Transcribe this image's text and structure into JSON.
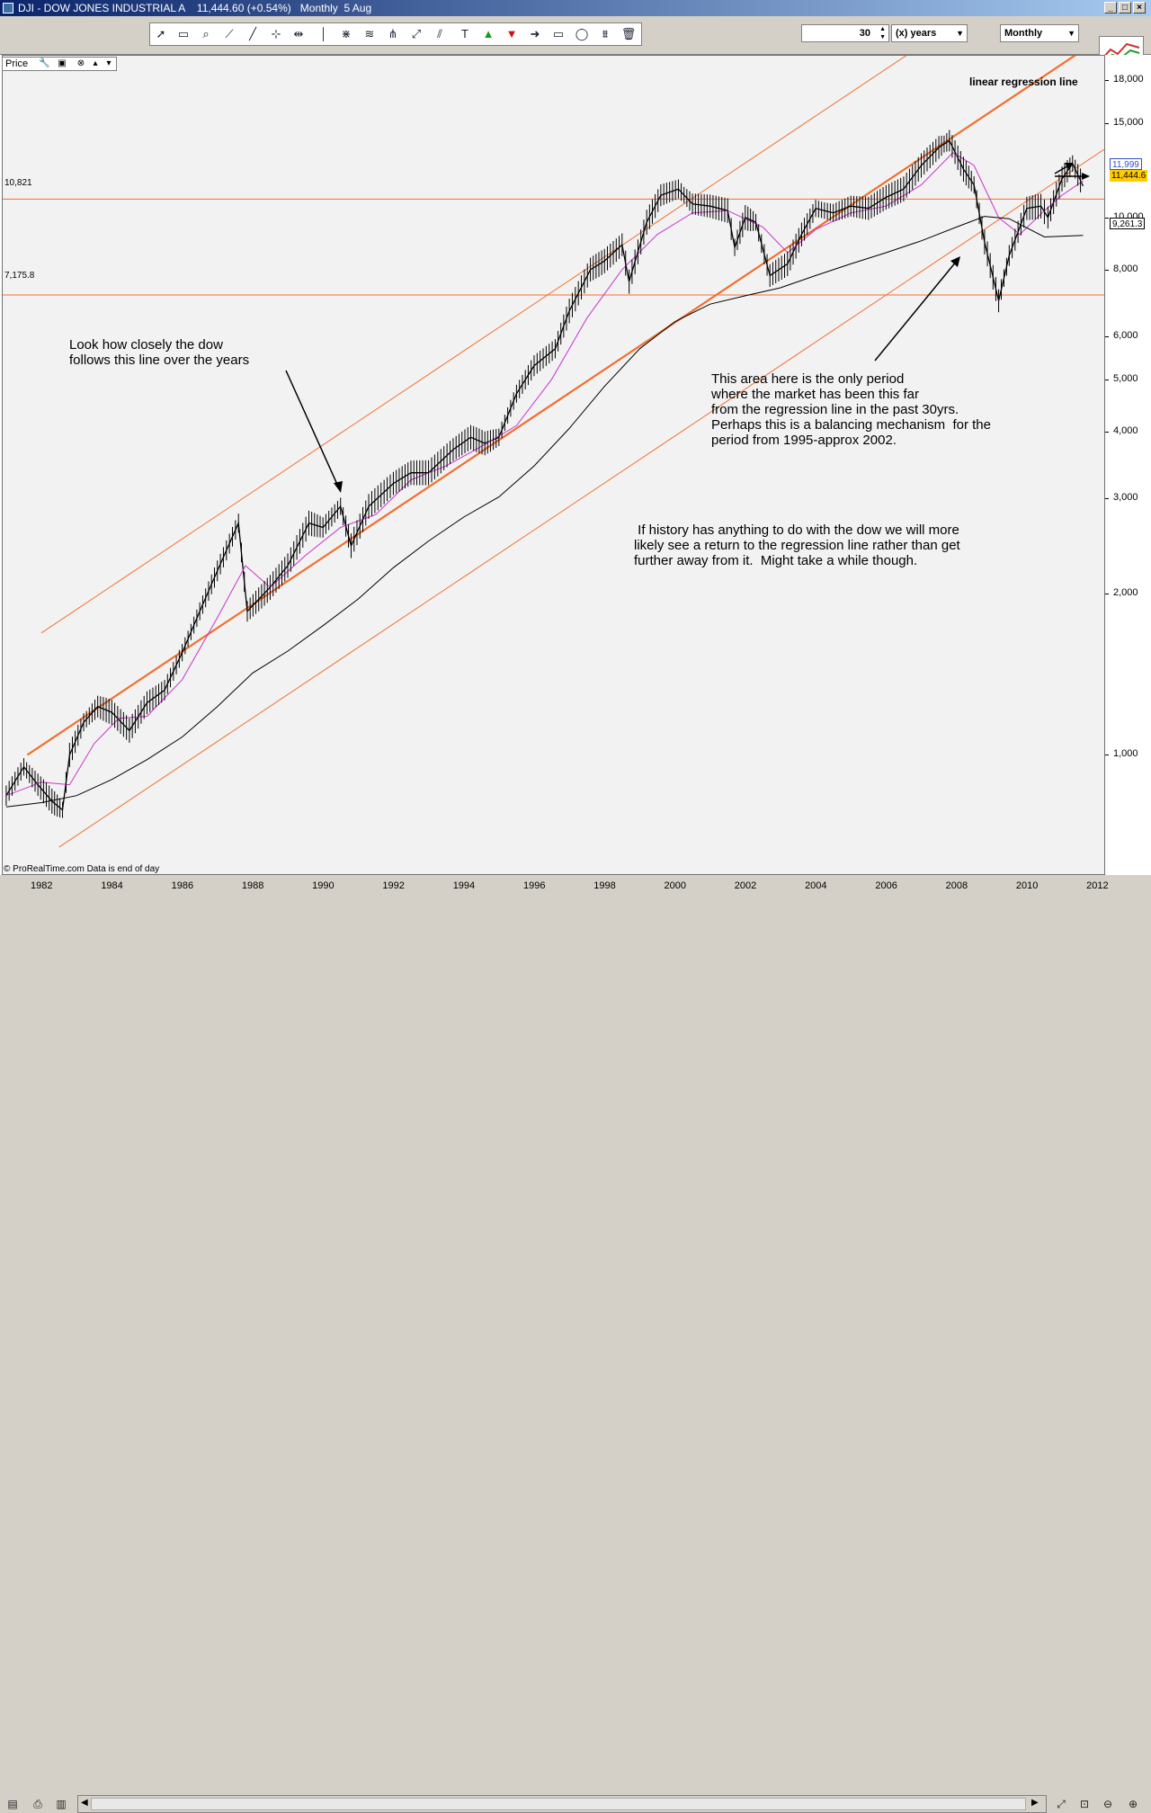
{
  "window": {
    "title": "DJI - DOW JONES INDUSTRIAL A    11,444.60 (+0.54%)   Monthly  5 Aug",
    "min_label": "_",
    "max_label": "□",
    "close_label": "×"
  },
  "toolbar": {
    "period_value": "30",
    "period_unit": "(x) years",
    "timeframe": "Monthly",
    "tools": [
      "pointer-icon",
      "ruler-icon",
      "zoom-icon",
      "trendline-icon",
      "line-icon",
      "horizontal-line-icon",
      "horizontal-segment-icon",
      "vertical-line-icon",
      "fibonacci-icon",
      "channel-icon",
      "pitchfork-icon",
      "regression-icon",
      "parallel-icon",
      "text-icon",
      "up-arrow-icon",
      "down-arrow-icon",
      "right-arrow-icon",
      "rectangle-icon",
      "ellipse-icon",
      "gann-icon",
      "trash-icon"
    ]
  },
  "panel": {
    "label": "Price"
  },
  "levels": {
    "upper_label": "10,821",
    "lower_label": "7,175.8"
  },
  "price_tags": {
    "upper": "11,999",
    "last": "11,444.6",
    "ma": "9,261.3"
  },
  "annotations": {
    "regression": "linear regression line",
    "follow": "Look how closely the dow\nfollows this line over the years",
    "period": "This area here is the only period\nwhere the market has been this far\nfrom the regression line in the past 30yrs.\nPerhaps this is a balancing mechanism  for the\nperiod from 1995-approx 2002.",
    "history": " If history has anything to do with the dow we will more\nlikely see a return to the regression line rather than get\nfurther away from it.  Might take a while though."
  },
  "credit": "© ProRealTime.com  Data is end of day",
  "colors": {
    "price": "#000000",
    "ma_short": "#cc33cc",
    "ma_long": "#000000",
    "regression": "#f07030",
    "level": "#f07030",
    "tag_last": "#ffcc00"
  },
  "chart_data": {
    "type": "line",
    "title": "DJI - DOW JONES INDUSTRIAL A",
    "scale": "log",
    "ylim": [
      600,
      20000
    ],
    "xlim": [
      1980.9,
      2012.2
    ],
    "y_ticks": [
      "18,000",
      "15,000",
      "10,000",
      "8,000",
      "6,000",
      "5,000",
      "4,000",
      "3,000",
      "2,000",
      "1,000"
    ],
    "y_tick_values": [
      18000,
      15000,
      10000,
      8000,
      6000,
      5000,
      4000,
      3000,
      2000,
      1000
    ],
    "x_ticks": [
      "1982",
      "1984",
      "1986",
      "1988",
      "1990",
      "1992",
      "1994",
      "1996",
      "1998",
      "2000",
      "2002",
      "2004",
      "2006",
      "2008",
      "2010",
      "2012"
    ],
    "x_tick_values": [
      1982,
      1984,
      1986,
      1988,
      1990,
      1992,
      1994,
      1996,
      1998,
      2000,
      2002,
      2004,
      2006,
      2008,
      2010,
      2012
    ],
    "series": [
      {
        "name": "DJI",
        "points": [
          [
            1981.0,
            840
          ],
          [
            1981.5,
            950
          ],
          [
            1981.9,
            880
          ],
          [
            1982.3,
            820
          ],
          [
            1982.6,
            790
          ],
          [
            1982.8,
            1000
          ],
          [
            1983.2,
            1150
          ],
          [
            1983.6,
            1230
          ],
          [
            1984.0,
            1200
          ],
          [
            1984.5,
            1110
          ],
          [
            1985.0,
            1250
          ],
          [
            1985.5,
            1320
          ],
          [
            1986.0,
            1550
          ],
          [
            1986.5,
            1850
          ],
          [
            1987.0,
            2200
          ],
          [
            1987.6,
            2700
          ],
          [
            1987.85,
            1850
          ],
          [
            1988.5,
            2050
          ],
          [
            1989.0,
            2250
          ],
          [
            1989.6,
            2700
          ],
          [
            1990.0,
            2650
          ],
          [
            1990.5,
            2900
          ],
          [
            1990.8,
            2450
          ],
          [
            1991.3,
            2900
          ],
          [
            1992.0,
            3200
          ],
          [
            1992.5,
            3350
          ],
          [
            1993.0,
            3350
          ],
          [
            1993.7,
            3700
          ],
          [
            1994.2,
            3900
          ],
          [
            1994.6,
            3800
          ],
          [
            1995.0,
            3900
          ],
          [
            1995.5,
            4700
          ],
          [
            1996.0,
            5300
          ],
          [
            1996.6,
            5700
          ],
          [
            1997.0,
            6700
          ],
          [
            1997.6,
            8000
          ],
          [
            1998.0,
            8300
          ],
          [
            1998.5,
            8900
          ],
          [
            1998.7,
            7600
          ],
          [
            1999.2,
            9800
          ],
          [
            1999.6,
            11000
          ],
          [
            2000.1,
            11300
          ],
          [
            2000.5,
            10600
          ],
          [
            2001.0,
            10500
          ],
          [
            2001.5,
            10300
          ],
          [
            2001.7,
            8800
          ],
          [
            2002.0,
            10000
          ],
          [
            2002.3,
            9800
          ],
          [
            2002.7,
            7800
          ],
          [
            2003.2,
            8200
          ],
          [
            2003.6,
            9300
          ],
          [
            2004.0,
            10400
          ],
          [
            2004.5,
            10200
          ],
          [
            2005.0,
            10500
          ],
          [
            2005.5,
            10400
          ],
          [
            2006.0,
            10900
          ],
          [
            2006.5,
            11300
          ],
          [
            2007.0,
            12500
          ],
          [
            2007.5,
            13500
          ],
          [
            2007.8,
            13900
          ],
          [
            2008.2,
            12300
          ],
          [
            2008.5,
            11500
          ],
          [
            2008.8,
            9000
          ],
          [
            2009.2,
            7000
          ],
          [
            2009.5,
            8500
          ],
          [
            2010.0,
            10400
          ],
          [
            2010.4,
            10500
          ],
          [
            2010.6,
            10000
          ],
          [
            2011.0,
            11800
          ],
          [
            2011.3,
            12600
          ],
          [
            2011.6,
            11444.6
          ]
        ]
      },
      {
        "name": "",
        "points": [
          [
            1981.0,
            840
          ],
          [
            1982.0,
            890
          ],
          [
            1982.8,
            880
          ],
          [
            1983.5,
            1050
          ],
          [
            1984.2,
            1170
          ],
          [
            1985.0,
            1180
          ],
          [
            1986.0,
            1380
          ],
          [
            1987.0,
            1800
          ],
          [
            1987.8,
            2250
          ],
          [
            1988.5,
            2050
          ],
          [
            1989.5,
            2350
          ],
          [
            1990.5,
            2650
          ],
          [
            1991.5,
            2800
          ],
          [
            1992.5,
            3250
          ],
          [
            1993.5,
            3450
          ],
          [
            1994.5,
            3750
          ],
          [
            1995.5,
            4100
          ],
          [
            1996.5,
            5000
          ],
          [
            1997.5,
            6500
          ],
          [
            1998.5,
            8000
          ],
          [
            1999.5,
            9300
          ],
          [
            2000.5,
            10200
          ],
          [
            2001.5,
            10300
          ],
          [
            2002.5,
            9600
          ],
          [
            2003.2,
            8600
          ],
          [
            2004.0,
            9500
          ],
          [
            2005.0,
            10200
          ],
          [
            2006.0,
            10500
          ],
          [
            2007.0,
            11500
          ],
          [
            2007.9,
            13200
          ],
          [
            2008.5,
            12500
          ],
          [
            2009.2,
            10000
          ],
          [
            2009.8,
            9300
          ],
          [
            2010.5,
            10300
          ],
          [
            2011.0,
            11000
          ],
          [
            2011.6,
            11700
          ]
        ]
      },
      {
        "name": "",
        "points": [
          [
            1981.0,
            800
          ],
          [
            1982.0,
            815
          ],
          [
            1983.0,
            840
          ],
          [
            1984.0,
            900
          ],
          [
            1985.0,
            980
          ],
          [
            1986.0,
            1080
          ],
          [
            1987.0,
            1230
          ],
          [
            1988.0,
            1420
          ],
          [
            1989.0,
            1560
          ],
          [
            1990.0,
            1740
          ],
          [
            1991.0,
            1950
          ],
          [
            1992.0,
            2230
          ],
          [
            1993.0,
            2500
          ],
          [
            1994.0,
            2770
          ],
          [
            1995.0,
            3020
          ],
          [
            1996.0,
            3450
          ],
          [
            1997.0,
            4050
          ],
          [
            1998.0,
            4850
          ],
          [
            1999.0,
            5700
          ],
          [
            2000.0,
            6400
          ],
          [
            2001.0,
            6900
          ],
          [
            2002.0,
            7150
          ],
          [
            2003.0,
            7400
          ],
          [
            2004.0,
            7800
          ],
          [
            2005.0,
            8200
          ],
          [
            2006.0,
            8600
          ],
          [
            2007.0,
            9050
          ],
          [
            2008.0,
            9600
          ],
          [
            2008.8,
            10050
          ],
          [
            2009.5,
            9950
          ],
          [
            2010.5,
            9200
          ],
          [
            2011.6,
            9261.3
          ]
        ]
      }
    ],
    "regression": {
      "start": [
        1981.6,
        1000
      ],
      "end": [
        2011.6,
        20500
      ],
      "upper_offset_factor": 1.62,
      "lower_offset_factor": 0.615
    },
    "levels": [
      10821,
      7175.8
    ]
  }
}
